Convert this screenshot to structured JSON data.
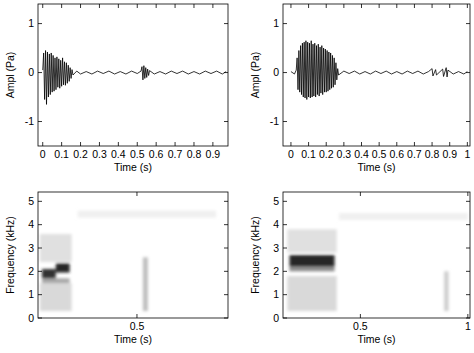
{
  "chart_data": [
    {
      "type": "line",
      "xlabel": "Time (s)",
      "ylabel": "Ampl (Pa)",
      "color": "#000000",
      "xlim": [
        -0.025,
        0.98
      ],
      "ylim": [
        -1.5,
        1.4
      ],
      "xticks": [
        0,
        0.1,
        0.2,
        0.3,
        0.4,
        0.5,
        0.6,
        0.7,
        0.8,
        0.9
      ],
      "yticks": [
        -1,
        0,
        1
      ],
      "x": [
        0,
        0.005,
        0.01,
        0.015,
        0.02,
        0.025,
        0.03,
        0.035,
        0.04,
        0.045,
        0.05,
        0.055,
        0.06,
        0.065,
        0.07,
        0.075,
        0.08,
        0.085,
        0.09,
        0.095,
        0.1,
        0.105,
        0.11,
        0.115,
        0.12,
        0.125,
        0.13,
        0.135,
        0.14,
        0.145,
        0.15,
        0.155,
        0.16,
        0.18,
        0.2,
        0.23,
        0.26,
        0.29,
        0.32,
        0.35,
        0.38,
        0.41,
        0.44,
        0.47,
        0.5,
        0.52,
        0.525,
        0.53,
        0.535,
        0.54,
        0.545,
        0.55,
        0.555,
        0.56,
        0.565,
        0.59,
        0.62,
        0.65,
        0.68,
        0.71,
        0.74,
        0.77,
        0.8,
        0.83,
        0.86,
        0.89,
        0.92,
        0.95,
        0.97
      ],
      "values": [
        0.05,
        0.4,
        -0.55,
        0.45,
        -0.65,
        0.42,
        -0.5,
        0.38,
        -0.45,
        0.4,
        -0.4,
        0.35,
        -0.38,
        0.3,
        -0.35,
        0.32,
        -0.3,
        0.28,
        -0.32,
        0.25,
        -0.28,
        0.3,
        -0.25,
        0.22,
        -0.26,
        0.2,
        -0.22,
        0.15,
        -0.18,
        0.1,
        -0.12,
        0.06,
        -0.05,
        0.03,
        -0.03,
        0.02,
        -0.03,
        0.03,
        -0.02,
        0.03,
        -0.03,
        0.02,
        -0.03,
        0.03,
        -0.02,
        0.03,
        0.12,
        -0.15,
        0.14,
        -0.12,
        0.1,
        -0.1,
        0.07,
        -0.06,
        0.04,
        -0.03,
        0.02,
        -0.03,
        0.03,
        -0.02,
        0.03,
        -0.03,
        0.02,
        -0.03,
        0.03,
        -0.02,
        0.03,
        -0.03,
        0.02
      ]
    },
    {
      "type": "line",
      "xlabel": "Time (s)",
      "ylabel": "Ampl (Pa)",
      "color": "#000000",
      "xlim": [
        -0.045,
        1.015
      ],
      "ylim": [
        -1.5,
        1.4
      ],
      "xticks": [
        0,
        0.1,
        0.2,
        0.3,
        0.4,
        0.5,
        0.6,
        0.7,
        0.8,
        0.9,
        1
      ],
      "yticks": [
        -1,
        0,
        1
      ],
      "x": [
        0,
        0.02,
        0.03,
        0.035,
        0.04,
        0.045,
        0.05,
        0.055,
        0.06,
        0.065,
        0.07,
        0.075,
        0.08,
        0.085,
        0.09,
        0.095,
        0.1,
        0.105,
        0.11,
        0.115,
        0.12,
        0.125,
        0.13,
        0.135,
        0.14,
        0.145,
        0.15,
        0.155,
        0.16,
        0.165,
        0.17,
        0.175,
        0.18,
        0.185,
        0.19,
        0.195,
        0.2,
        0.205,
        0.21,
        0.215,
        0.22,
        0.225,
        0.23,
        0.235,
        0.24,
        0.245,
        0.25,
        0.255,
        0.26,
        0.265,
        0.27,
        0.3,
        0.33,
        0.36,
        0.39,
        0.42,
        0.45,
        0.48,
        0.51,
        0.54,
        0.57,
        0.6,
        0.63,
        0.66,
        0.69,
        0.72,
        0.75,
        0.78,
        0.8,
        0.805,
        0.82,
        0.825,
        0.86,
        0.865,
        0.88,
        0.885,
        0.89,
        0.92,
        0.95,
        0.98,
        1.0
      ],
      "values": [
        0.02,
        -0.03,
        0.05,
        0.3,
        -0.35,
        0.45,
        -0.4,
        0.55,
        -0.45,
        0.6,
        -0.5,
        0.62,
        -0.52,
        0.65,
        -0.55,
        0.62,
        -0.5,
        0.6,
        -0.52,
        0.65,
        -0.5,
        0.58,
        -0.48,
        0.6,
        -0.5,
        0.55,
        -0.45,
        0.58,
        -0.48,
        0.52,
        -0.42,
        0.55,
        -0.45,
        0.5,
        -0.4,
        0.48,
        -0.4,
        0.45,
        -0.38,
        0.42,
        -0.35,
        0.4,
        -0.32,
        0.35,
        -0.3,
        0.3,
        -0.25,
        0.2,
        -0.15,
        0.08,
        -0.05,
        0.03,
        -0.02,
        0.03,
        -0.03,
        0.02,
        -0.03,
        0.03,
        -0.02,
        0.03,
        -0.03,
        0.02,
        -0.03,
        0.03,
        -0.02,
        0.03,
        -0.03,
        0.02,
        0.08,
        -0.07,
        0.06,
        -0.05,
        0.07,
        -0.08,
        0.1,
        -0.09,
        0.05,
        -0.03,
        0.02,
        -0.03,
        0.02
      ]
    },
    {
      "type": "heatmap",
      "xlabel": "Time (s)",
      "ylabel": "Frequency (kHz)",
      "color": "#000000",
      "xlim": [
        0,
        0.96
      ],
      "ylim": [
        0,
        5.4
      ],
      "zlim": [
        0,
        1
      ],
      "xticks": [
        0.5
      ],
      "yticks": [
        0,
        1,
        2,
        3,
        4,
        5
      ],
      "cells": [
        [
          0.01,
          0.17,
          0.3,
          1.5,
          0.15
        ],
        [
          0.01,
          0.17,
          2.4,
          3.6,
          0.12
        ],
        [
          0.02,
          0.16,
          1.5,
          1.7,
          0.35
        ],
        [
          0.02,
          0.09,
          1.7,
          2.1,
          0.8
        ],
        [
          0.09,
          0.16,
          1.95,
          2.35,
          0.85
        ],
        [
          0.53,
          0.555,
          0.3,
          2.6,
          0.25
        ],
        [
          0.2,
          0.9,
          4.3,
          4.6,
          0.06
        ]
      ]
    },
    {
      "type": "heatmap",
      "xlabel": "Time (s)",
      "ylabel": "Frequency (kHz)",
      "color": "#000000",
      "xlim": [
        0.14,
        1.01
      ],
      "ylim": [
        0,
        5.4
      ],
      "zlim": [
        0,
        1
      ],
      "xticks": [
        0.5,
        1
      ],
      "yticks": [
        0,
        1,
        2,
        3,
        4,
        5
      ],
      "cells": [
        [
          0.16,
          0.39,
          0.3,
          1.8,
          0.15
        ],
        [
          0.16,
          0.39,
          2.8,
          3.8,
          0.12
        ],
        [
          0.17,
          0.38,
          2.0,
          2.2,
          0.45
        ],
        [
          0.17,
          0.38,
          2.2,
          2.7,
          0.85
        ],
        [
          0.89,
          0.91,
          0.3,
          2.0,
          0.2
        ],
        [
          0.4,
          1.0,
          4.2,
          4.5,
          0.06
        ]
      ]
    }
  ]
}
